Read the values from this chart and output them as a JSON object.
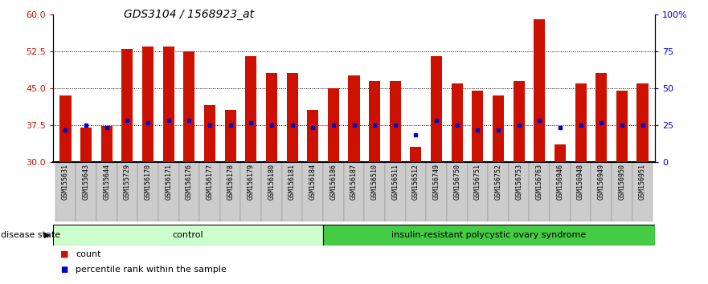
{
  "title": "GDS3104 / 1568923_at",
  "samples": [
    "GSM155631",
    "GSM155643",
    "GSM155644",
    "GSM155729",
    "GSM156170",
    "GSM156171",
    "GSM156176",
    "GSM156177",
    "GSM156178",
    "GSM156179",
    "GSM156180",
    "GSM156181",
    "GSM156184",
    "GSM156186",
    "GSM156187",
    "GSM156510",
    "GSM156511",
    "GSM156512",
    "GSM156749",
    "GSM156750",
    "GSM156751",
    "GSM156752",
    "GSM156753",
    "GSM156763",
    "GSM156946",
    "GSM156948",
    "GSM156949",
    "GSM156950",
    "GSM156951"
  ],
  "bar_values": [
    43.5,
    37.0,
    37.3,
    53.0,
    53.5,
    53.5,
    52.5,
    41.5,
    40.5,
    51.5,
    48.0,
    48.0,
    40.5,
    45.0,
    47.5,
    46.5,
    46.5,
    33.0,
    51.5,
    46.0,
    44.5,
    43.5,
    46.5,
    59.0,
    33.5,
    46.0,
    48.0,
    44.5,
    46.0
  ],
  "percentile_values": [
    36.5,
    37.5,
    37.0,
    38.5,
    38.0,
    38.5,
    38.5,
    37.5,
    37.5,
    38.0,
    37.5,
    37.5,
    37.0,
    37.5,
    37.5,
    37.5,
    37.5,
    35.5,
    38.5,
    37.5,
    36.5,
    36.5,
    37.5,
    38.5,
    37.0,
    37.5,
    38.0,
    37.5,
    37.5
  ],
  "control_count": 13,
  "bar_color": "#cc1100",
  "percentile_color": "#0000cc",
  "ylim_left": [
    30,
    60
  ],
  "ylim_right": [
    0,
    100
  ],
  "yticks_left": [
    30,
    37.5,
    45,
    52.5,
    60
  ],
  "yticks_right": [
    0,
    25,
    50,
    75,
    100
  ],
  "grid_lines": [
    37.5,
    45,
    52.5
  ],
  "control_label": "control",
  "disease_label": "insulin-resistant polycystic ovary syndrome",
  "disease_state_label": "disease state",
  "legend_count_label": "count",
  "legend_percentile_label": "percentile rank within the sample",
  "control_bg": "#ccffcc",
  "disease_bg": "#44cc44",
  "label_bg": "#cccccc",
  "bar_width": 0.55,
  "title_fontsize": 10,
  "tick_fontsize": 6,
  "ytick_fontsize": 8,
  "band_fontsize": 8,
  "legend_fontsize": 8
}
